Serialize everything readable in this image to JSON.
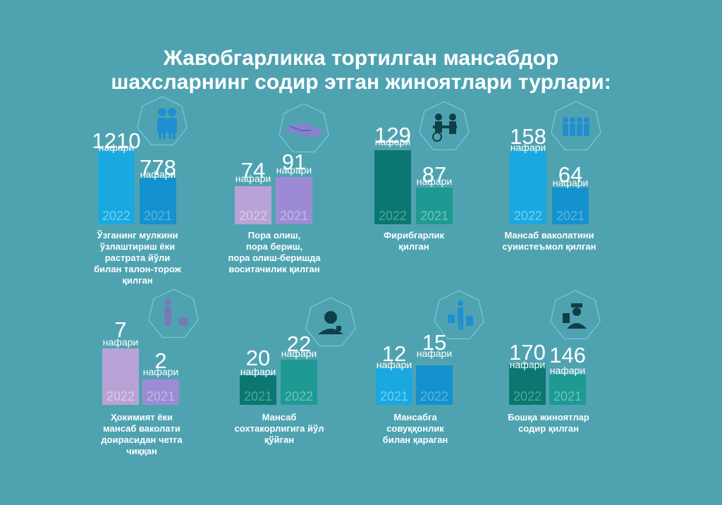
{
  "title": [
    "Жавобгарликка тортилган мансабдор",
    "шахсларнинг содир этган жиноятлари турлари:"
  ],
  "unit_label": "нафари",
  "colors": {
    "background": "#4fa3b1",
    "light_blue": "#19a9e0",
    "blue": "#1492cf",
    "purple_light": "#b9a2d6",
    "purple": "#9c8bd4",
    "teal_dark": "#0b7770",
    "teal": "#1e9a92"
  },
  "chart_data": [
    {
      "type": "bar",
      "icon": "people-icon",
      "bars": [
        {
          "year": "2022",
          "value": 1210,
          "color": "#19a9e0"
        },
        {
          "year": "2021",
          "value": 778,
          "color": "#1492cf"
        }
      ],
      "caption": [
        "Ўзганинг мулкини",
        "ўзлаштириш ёки",
        "растрата йўли",
        "билан талон-торож",
        "қилган"
      ]
    },
    {
      "type": "bar",
      "icon": "handshake-icon",
      "bars": [
        {
          "year": "2022",
          "value": 74,
          "color": "#b9a2d6"
        },
        {
          "year": "2021",
          "value": 91,
          "color": "#9c8bd4"
        }
      ],
      "caption": [
        "Пора олиш,",
        "пора бериш,",
        "пора олиш-беришда",
        "воситачилик қилган"
      ]
    },
    {
      "type": "bar",
      "icon": "fraud-icon",
      "bars": [
        {
          "year": "2022",
          "value": 129,
          "color": "#0b7770"
        },
        {
          "year": "2021",
          "value": 87,
          "color": "#1e9a92"
        }
      ],
      "caption": [
        "Фирибгарлик",
        "қилган"
      ]
    },
    {
      "type": "bar",
      "icon": "crowd-icon",
      "bars": [
        {
          "year": "2022",
          "value": 158,
          "color": "#19a9e0"
        },
        {
          "year": "2021",
          "value": 64,
          "color": "#1492cf"
        }
      ],
      "caption": [
        "Мансаб ваколатини",
        "суиистеъмол қилган"
      ]
    },
    {
      "type": "bar",
      "icon": "person-icon",
      "bars": [
        {
          "year": "2022",
          "value": 7,
          "color": "#b9a2d6"
        },
        {
          "year": "2021",
          "value": 2,
          "color": "#9c8bd4"
        }
      ],
      "caption": [
        "Ҳокимият ёки",
        "мансаб ваколати",
        "доирасидан четга",
        "чиққан"
      ]
    },
    {
      "type": "bar",
      "icon": "officer-icon",
      "bars": [
        {
          "year": "2021",
          "value": 20,
          "color": "#0b7770"
        },
        {
          "year": "2022",
          "value": 22,
          "color": "#1e9a92"
        }
      ],
      "caption": [
        "Мансаб",
        "сохтакорлигига йўл",
        "қўйган"
      ]
    },
    {
      "type": "bar",
      "icon": "shopping-icon",
      "bars": [
        {
          "year": "2021",
          "value": 12,
          "color": "#19a9e0"
        },
        {
          "year": "2022",
          "value": 15,
          "color": "#1492cf"
        }
      ],
      "caption": [
        "Мансабга",
        "совуққонлик",
        "билан қараган"
      ]
    },
    {
      "type": "bar",
      "icon": "inspector-icon",
      "bars": [
        {
          "year": "2022",
          "value": 170,
          "color": "#0b7770"
        },
        {
          "year": "2021",
          "value": 146,
          "color": "#1e9a92"
        }
      ],
      "caption": [
        "Бошқа жиноятлар",
        "содир қилган"
      ]
    }
  ]
}
